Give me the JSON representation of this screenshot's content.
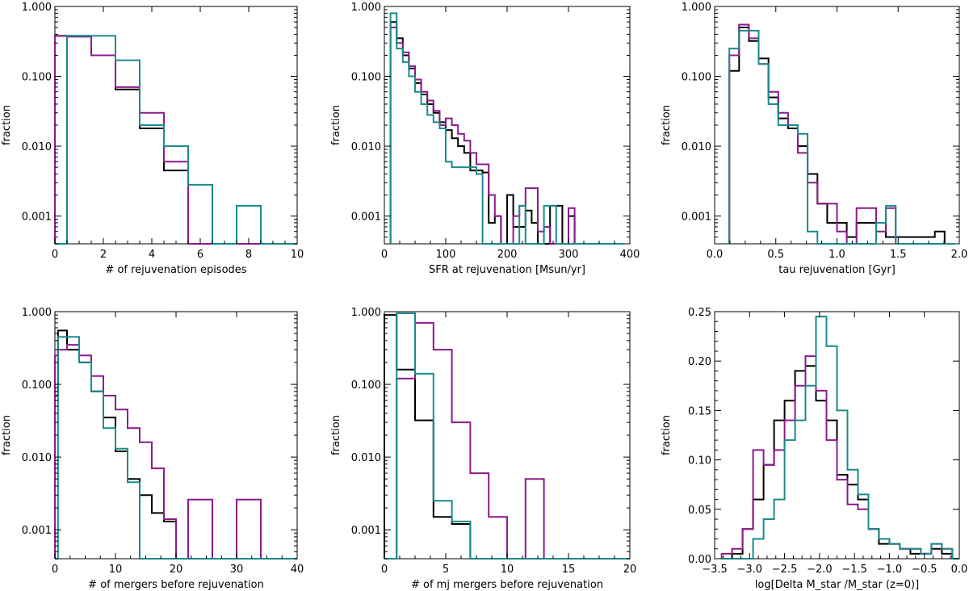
{
  "colors": {
    "black": "#000000",
    "purple": "#8b1a8b",
    "teal": "#1a8b8b"
  },
  "chart_data": [
    {
      "id": "p1",
      "type": "step-histogram",
      "scale": "log",
      "xlabel": "# of rejuvenation episodes",
      "ylabel": "fraction",
      "xlim": [
        0,
        10
      ],
      "ylim": [
        0.0004,
        1.0
      ],
      "xticks": [
        "0",
        "2",
        "4",
        "6",
        "8",
        "10"
      ],
      "yticks": [
        "0.001",
        "0.010",
        "0.100",
        "1.000"
      ],
      "bins": [
        0,
        0.5,
        1.5,
        2.5,
        3.5,
        4.5,
        5.5,
        6.5,
        7.5,
        8.5,
        9.5,
        10
      ],
      "series": [
        {
          "name": "black",
          "color": "#000000",
          "values": [
            0.38,
            0.38,
            0.2,
            0.065,
            0.018,
            0.0045,
            0.0004,
            0.0004,
            0.0004,
            0.0004,
            0.0004
          ]
        },
        {
          "name": "purple",
          "color": "#8b1a8b",
          "values": [
            0.38,
            0.37,
            0.2,
            0.07,
            0.03,
            0.006,
            0.0004,
            0.0004,
            0.0004,
            0.0004,
            0.0004
          ]
        },
        {
          "name": "teal",
          "color": "#1a8b8b",
          "values": [
            0.0004,
            0.38,
            0.38,
            0.17,
            0.02,
            0.01,
            0.0028,
            0.0004,
            0.0014,
            0.0004,
            0.0004
          ]
        }
      ]
    },
    {
      "id": "p2",
      "type": "step-histogram",
      "scale": "log",
      "xlabel": "SFR at rejuvenation [Msun/yr]",
      "ylabel": "fraction",
      "xlim": [
        0,
        400
      ],
      "ylim": [
        0.0004,
        1.0
      ],
      "xticks": [
        "0",
        "100",
        "200",
        "300",
        "400"
      ],
      "yticks": [
        "0.001",
        "0.010",
        "0.100",
        "1.000"
      ],
      "bins": [
        10,
        20,
        30,
        40,
        50,
        60,
        70,
        80,
        90,
        100,
        110,
        120,
        130,
        140,
        150,
        160,
        170,
        180,
        190,
        200,
        210,
        220,
        230,
        240,
        250,
        260,
        270,
        280,
        290,
        300,
        310,
        320,
        330,
        340,
        350,
        360,
        370,
        380,
        390
      ],
      "series": [
        {
          "name": "black",
          "color": "#000000",
          "values": [
            0.6,
            0.35,
            0.2,
            0.13,
            0.08,
            0.055,
            0.04,
            0.03,
            0.022,
            0.017,
            0.013,
            0.01,
            0.008,
            0.0045,
            0.0045,
            0.0042,
            0.0008,
            0.001,
            0.0004,
            0.002,
            0.0007,
            0.0007,
            0.0012,
            0.0008,
            0.0004,
            0.0004,
            0.0014,
            0.0014,
            0.0004,
            0.001,
            0.0004,
            0.0004,
            0.0004,
            0.0004,
            0.0004,
            0.0004,
            0.0004,
            0.0004
          ]
        },
        {
          "name": "purple",
          "color": "#8b1a8b",
          "values": [
            0.5,
            0.3,
            0.22,
            0.14,
            0.09,
            0.06,
            0.045,
            0.032,
            0.02,
            0.025,
            0.02,
            0.015,
            0.012,
            0.008,
            0.0055,
            0.0055,
            0.002,
            0.001,
            0.0004,
            0.0004,
            0.001,
            0.0014,
            0.0025,
            0.0025,
            0.0006,
            0.0007,
            0.0004,
            0.0004,
            0.0004,
            0.0013,
            0.0004,
            0.0004,
            0.0004,
            0.0004,
            0.0004,
            0.0004,
            0.0004,
            0.0004
          ]
        },
        {
          "name": "teal",
          "color": "#1a8b8b",
          "values": [
            0.8,
            0.25,
            0.16,
            0.1,
            0.06,
            0.04,
            0.028,
            0.022,
            0.018,
            0.006,
            0.005,
            0.005,
            0.005,
            0.005,
            0.004,
            0.0004,
            0.0004,
            0.0004,
            0.0004,
            0.0004,
            0.0004,
            0.0014,
            0.0004,
            0.0004,
            0.0004,
            0.0014,
            0.0014,
            0.0004,
            0.0004,
            0.0004,
            0.0004,
            0.0004,
            0.0004,
            0.0004,
            0.0004,
            0.0004,
            0.0004,
            0.0004
          ]
        }
      ]
    },
    {
      "id": "p3",
      "type": "step-histogram",
      "scale": "log",
      "xlabel": "tau rejuvenation [Gyr]",
      "ylabel": "fraction",
      "xlim": [
        0,
        2.0
      ],
      "ylim": [
        0.0004,
        1.0
      ],
      "xticks": [
        "0.0",
        "0.5",
        "1.0",
        "1.5",
        "2.0"
      ],
      "yticks": [
        "0.001",
        "0.010",
        "0.100",
        "1.000"
      ],
      "bins": [
        0.12,
        0.2,
        0.28,
        0.36,
        0.44,
        0.52,
        0.6,
        0.68,
        0.76,
        0.84,
        0.92,
        1.0,
        1.08,
        1.16,
        1.24,
        1.32,
        1.4,
        1.48,
        1.56,
        1.64,
        1.72,
        1.8,
        1.88,
        1.96
      ],
      "series": [
        {
          "name": "black",
          "color": "#000000",
          "values": [
            0.12,
            0.5,
            0.32,
            0.18,
            0.05,
            0.025,
            0.018,
            0.01,
            0.004,
            0.0015,
            0.0008,
            0.0008,
            0.0005,
            0.0008,
            0.0008,
            0.0008,
            0.0005,
            0.0005,
            0.0005,
            0.0005,
            0.0005,
            0.0006,
            0.0004
          ]
        },
        {
          "name": "purple",
          "color": "#8b1a8b",
          "values": [
            0.2,
            0.55,
            0.35,
            0.15,
            0.06,
            0.03,
            0.02,
            0.008,
            0.003,
            0.0015,
            0.0015,
            0.0006,
            0.0004,
            0.0013,
            0.0013,
            0.0006,
            0.0013,
            0.0004,
            0.0004,
            0.0004,
            0.0004,
            0.0004,
            0.0004
          ]
        },
        {
          "name": "teal",
          "color": "#1a8b8b",
          "values": [
            0.25,
            0.45,
            0.45,
            0.15,
            0.04,
            0.02,
            0.02,
            0.015,
            0.0006,
            0.0004,
            0.0004,
            0.0004,
            0.0004,
            0.0004,
            0.0004,
            0.0008,
            0.0014,
            0.0004,
            0.0004,
            0.0004,
            0.0004,
            0.0004,
            0.0004
          ]
        }
      ]
    },
    {
      "id": "p4",
      "type": "step-histogram",
      "scale": "log",
      "xlabel": "# of mergers before rejuvenation",
      "ylabel": "fraction",
      "xlim": [
        0,
        40
      ],
      "ylim": [
        0.0004,
        1.0
      ],
      "xticks": [
        "0",
        "10",
        "20",
        "30",
        "40"
      ],
      "yticks": [
        "0.001",
        "0.010",
        "0.100",
        "1.000"
      ],
      "bins": [
        0,
        0.5,
        2,
        4,
        6,
        8,
        10,
        12,
        14,
        16,
        18,
        20,
        22,
        24,
        26,
        28,
        30,
        32,
        34,
        36,
        38,
        40
      ],
      "series": [
        {
          "name": "black",
          "color": "#000000",
          "values": [
            0.07,
            0.55,
            0.3,
            0.2,
            0.08,
            0.035,
            0.012,
            0.005,
            0.003,
            0.0017,
            0.0013,
            0.0004,
            0.0004,
            0.0004,
            0.0004,
            0.0004,
            0.0004,
            0.0004,
            0.0004,
            0.0004,
            0.0004
          ]
        },
        {
          "name": "purple",
          "color": "#8b1a8b",
          "values": [
            0.25,
            0.3,
            0.35,
            0.25,
            0.13,
            0.07,
            0.045,
            0.025,
            0.016,
            0.007,
            0.0014,
            0.0004,
            0.0026,
            0.0026,
            0.0004,
            0.0004,
            0.0026,
            0.0026,
            0.0004,
            0.0004,
            0.0004
          ]
        },
        {
          "name": "teal",
          "color": "#1a8b8b",
          "values": [
            0.0004,
            0.45,
            0.45,
            0.2,
            0.08,
            0.025,
            0.013,
            0.0045,
            0.0004,
            0.0004,
            0.0004,
            0.0004,
            0.0004,
            0.0004,
            0.0004,
            0.0004,
            0.0004,
            0.0004,
            0.0004,
            0.0004,
            0.0004
          ]
        }
      ]
    },
    {
      "id": "p5",
      "type": "step-histogram",
      "scale": "log",
      "xlabel": "# of mj mergers before rejuvenation",
      "ylabel": "fraction",
      "xlim": [
        0,
        20
      ],
      "ylim": [
        0.0004,
        1.0
      ],
      "xticks": [
        "0",
        "5",
        "10",
        "15",
        "20"
      ],
      "yticks": [
        "0.001",
        "0.010",
        "0.100",
        "1.000"
      ],
      "bins": [
        0,
        1,
        2.5,
        4,
        5.5,
        7,
        8.5,
        10,
        11.5,
        13,
        14.5,
        16,
        17.5,
        19,
        20
      ],
      "series": [
        {
          "name": "black",
          "color": "#000000",
          "values": [
            0.9,
            0.16,
            0.032,
            0.0015,
            0.0012,
            0.0004,
            0.0004,
            0.0004,
            0.0004,
            0.0004,
            0.0004,
            0.0004,
            0.0004,
            0.0004
          ]
        },
        {
          "name": "purple",
          "color": "#8b1a8b",
          "values": [
            0.0004,
            0.12,
            0.7,
            0.3,
            0.03,
            0.006,
            0.0015,
            0.0004,
            0.005,
            0.0004,
            0.0004,
            0.0004,
            0.0004,
            0.0004
          ]
        },
        {
          "name": "teal",
          "color": "#1a8b8b",
          "values": [
            0.0004,
            0.95,
            0.14,
            0.0025,
            0.0013,
            0.0004,
            0.0004,
            0.0004,
            0.0004,
            0.0004,
            0.0004,
            0.0004,
            0.0004,
            0.0004
          ]
        }
      ]
    },
    {
      "id": "p6",
      "type": "step-histogram",
      "scale": "linear",
      "xlabel": "log[Delta M_star /M_star (z=0)]",
      "ylabel": "fraction",
      "xlim": [
        -3.5,
        0.0
      ],
      "ylim": [
        0.0,
        0.25
      ],
      "xticks": [
        "−3.5",
        "−3.0",
        "−2.5",
        "−2.0",
        "−1.5",
        "−1.0",
        "−0.5",
        "0.0"
      ],
      "yticks": [
        "0.00",
        "0.05",
        "0.10",
        "0.15",
        "0.20",
        "0.25"
      ],
      "bins": [
        -3.4,
        -3.25,
        -3.1,
        -2.95,
        -2.8,
        -2.65,
        -2.5,
        -2.35,
        -2.2,
        -2.05,
        -1.9,
        -1.75,
        -1.6,
        -1.45,
        -1.3,
        -1.15,
        -1.0,
        -0.85,
        -0.7,
        -0.55,
        -0.4,
        -0.25,
        -0.1,
        0.0
      ],
      "series": [
        {
          "name": "black",
          "color": "#000000",
          "values": [
            0.0,
            0.005,
            0.03,
            0.06,
            0.095,
            0.14,
            0.16,
            0.19,
            0.195,
            0.16,
            0.14,
            0.085,
            0.075,
            0.06,
            0.03,
            0.015,
            0.015,
            0.01,
            0.005,
            0.005,
            0.01,
            0.005,
            0.0
          ]
        },
        {
          "name": "purple",
          "color": "#8b1a8b",
          "values": [
            0.005,
            0.01,
            0.03,
            0.11,
            0.095,
            0.11,
            0.14,
            0.175,
            0.205,
            0.17,
            0.12,
            0.08,
            0.055,
            0.05,
            0.03,
            0.02,
            0.015,
            0.01,
            0.01,
            0.005,
            0.015,
            0.01,
            0.0
          ]
        },
        {
          "name": "teal",
          "color": "#1a8b8b",
          "values": [
            0.0,
            0.0,
            0.0,
            0.02,
            0.04,
            0.06,
            0.12,
            0.14,
            0.175,
            0.245,
            0.215,
            0.15,
            0.09,
            0.065,
            0.03,
            0.02,
            0.015,
            0.01,
            0.01,
            0.005,
            0.015,
            0.01,
            0.0
          ]
        }
      ]
    }
  ]
}
